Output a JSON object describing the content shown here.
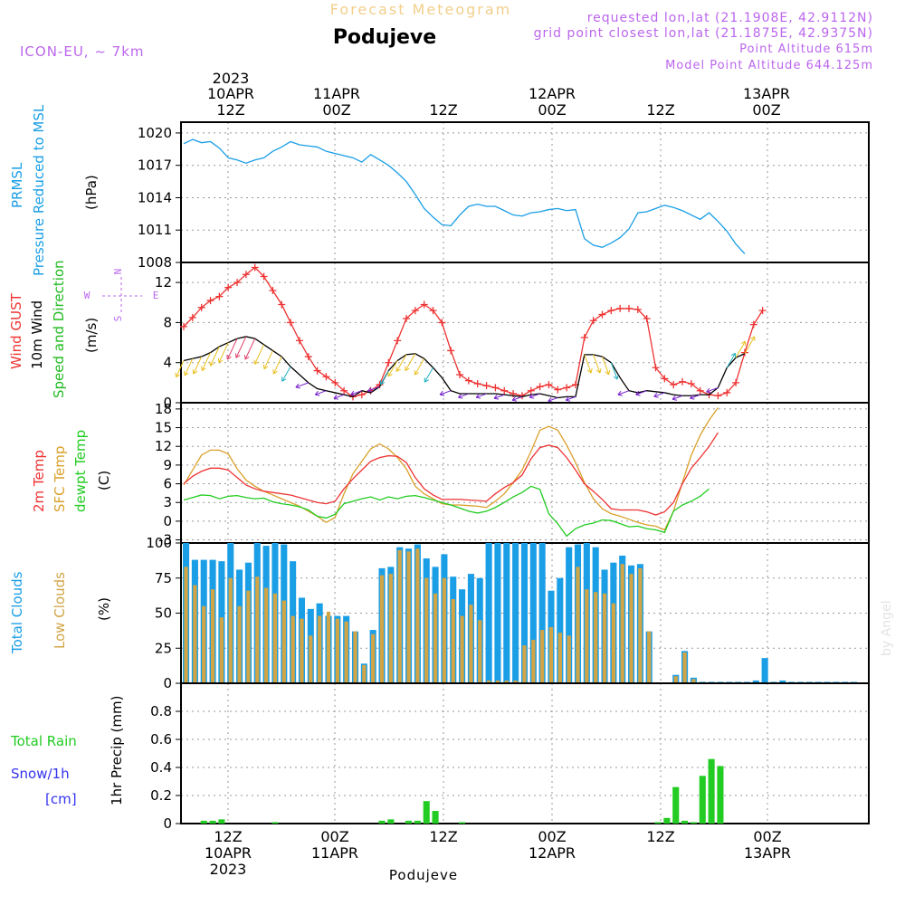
{
  "header": {
    "title": "Forecast Meteogram",
    "location": "Podujeve",
    "model": "ICON-EU, ~ 7km",
    "requested": "requested lon,lat (21.1908E, 42.9112N)",
    "gridpoint": "grid point closest lon,lat (21.1875E, 42.9375N)",
    "point_altitude": "Point Altitude 615m",
    "model_altitude": "Model Point Altitude 644.125m"
  },
  "footer": {
    "location": "Podujeve",
    "watermark": "by Angel"
  },
  "colors": {
    "pressure": "#1a9ee6",
    "gust": "#ee3333",
    "wind": "#000000",
    "dirlabel": "#22bb22",
    "temp2m": "#ee3333",
    "sfctemp": "#d9a02b",
    "dewpt": "#22cc22",
    "total_clouds": "#1a9ee6",
    "low_clouds": "#d1a546",
    "rain": "#22cc22",
    "snow": "#3333ee",
    "compass": "#bb66ee"
  },
  "time_axis": {
    "top": [
      {
        "line1": "2023",
        "line2": "10APR",
        "line3": "12Z"
      },
      {
        "line1": "",
        "line2": "11APR",
        "line3": "00Z"
      },
      {
        "line1": "",
        "line2": "",
        "line3": "12Z"
      },
      {
        "line1": "",
        "line2": "12APR",
        "line3": "00Z"
      },
      {
        "line1": "",
        "line2": "",
        "line3": "12Z"
      },
      {
        "line1": "",
        "line2": "13APR",
        "line3": "00Z"
      }
    ],
    "bottom": [
      {
        "line1": "12Z",
        "line2": "10APR",
        "line3": "2023"
      },
      {
        "line1": "00Z",
        "line2": "11APR",
        "line3": ""
      },
      {
        "line1": "12Z",
        "line2": "",
        "line3": ""
      },
      {
        "line1": "00Z",
        "line2": "12APR",
        "line3": ""
      },
      {
        "line1": "12Z",
        "line2": "",
        "line3": ""
      },
      {
        "line1": "00Z",
        "line2": "13APR",
        "line3": ""
      }
    ]
  },
  "panel_labels": {
    "pressure": {
      "name": "PRMSL",
      "desc": "Pressure Reduced to MSL",
      "unit": "(hPa)"
    },
    "wind": {
      "gust": "Wind GUST",
      "wind": "10m Wind",
      "dir": "Speed and Direction",
      "unit": "(m/s)",
      "compass_n": "N",
      "compass_s": "S",
      "compass_w": "W",
      "compass_e": "E"
    },
    "temp": {
      "t2m": "2m Temp",
      "sfc": "SFC Temp",
      "dew": "dewpt Temp",
      "unit": "(C)"
    },
    "clouds": {
      "total": "Total Clouds",
      "low": "Low Clouds",
      "unit": "(%)"
    },
    "precip": {
      "rain": "Total   Rain",
      "snow": "Snow/1h",
      "snow_unit": "[cm]",
      "title": "1hr Precip (mm)"
    }
  },
  "chart_data": [
    {
      "type": "line",
      "panel": "pressure",
      "x_hours_from": "10APR 06Z",
      "ylim": [
        1008,
        1021
      ],
      "yticks": [
        "1008",
        "1011",
        "1014",
        "1017",
        "1020"
      ],
      "series": [
        {
          "name": "PRMSL",
          "x": [
            0,
            1,
            2,
            3,
            4,
            5,
            6,
            7,
            8,
            9,
            10,
            11,
            12,
            13,
            14,
            15,
            16,
            17,
            18,
            19,
            20,
            21,
            22,
            23,
            24,
            25,
            26,
            27,
            28,
            29,
            30,
            31,
            32,
            33,
            34,
            35,
            36,
            37,
            38,
            39,
            40,
            41,
            42,
            43,
            44,
            45,
            46,
            47,
            48,
            49,
            50,
            51,
            52,
            53,
            54,
            55,
            56,
            57,
            58,
            59,
            60,
            61,
            62,
            63
          ],
          "values": [
            1019.0,
            1019.4,
            1019.1,
            1019.2,
            1018.6,
            1017.7,
            1017.5,
            1017.2,
            1017.5,
            1017.7,
            1018.3,
            1018.7,
            1019.2,
            1018.9,
            1018.8,
            1018.7,
            1018.3,
            1018.1,
            1017.9,
            1017.7,
            1017.3,
            1018.0,
            1017.5,
            1017.0,
            1016.3,
            1015.5,
            1014.3,
            1013.0,
            1012.2,
            1011.5,
            1011.4,
            1012.4,
            1013.2,
            1013.4,
            1013.2,
            1013.2,
            1012.8,
            1012.4,
            1012.3,
            1012.6,
            1012.7,
            1012.9,
            1013.0,
            1012.8,
            1012.9,
            1010.2,
            1009.6,
            1009.4,
            1009.8,
            1010.3,
            1011.1,
            1012.6,
            1012.7,
            1013.0,
            1013.3,
            1013.1,
            1012.8,
            1012.4,
            1012.0,
            1012.6,
            1011.8,
            1010.9,
            1009.7,
            1008.8
          ]
        }
      ]
    },
    {
      "type": "line",
      "panel": "wind",
      "ylim": [
        0,
        14
      ],
      "yticks": [
        "0",
        "4",
        "8",
        "12"
      ],
      "series": [
        {
          "name": "Wind GUST",
          "values": [
            7.6,
            8.5,
            9.5,
            10.2,
            10.6,
            11.5,
            12.0,
            12.8,
            13.5,
            12.6,
            11.2,
            9.8,
            8.0,
            6.2,
            4.6,
            3.2,
            2.6,
            2.0,
            1.2,
            0.6,
            0.8,
            1.2,
            1.8,
            4.0,
            6.2,
            8.4,
            9.2,
            9.8,
            9.2,
            8.0,
            5.2,
            2.8,
            2.2,
            1.9,
            1.7,
            1.5,
            1.2,
            0.9,
            0.7,
            1.2,
            1.6,
            1.8,
            1.3,
            1.5,
            1.8,
            6.5,
            8.2,
            8.8,
            9.2,
            9.4,
            9.4,
            9.3,
            8.4,
            3.5,
            2.4,
            1.8,
            2.1,
            1.9,
            1.2,
            0.8,
            0.7,
            1.0,
            2.0,
            5.0,
            7.8,
            9.2
          ]
        },
        {
          "name": "10m Wind",
          "values": [
            4.2,
            4.4,
            4.6,
            5.0,
            5.6,
            6.0,
            6.4,
            6.6,
            6.4,
            5.8,
            5.2,
            4.6,
            3.6,
            2.8,
            2.0,
            1.4,
            1.2,
            1.0,
            0.8,
            0.6,
            1.2,
            1.0,
            1.6,
            3.2,
            4.2,
            4.8,
            4.9,
            4.4,
            3.5,
            2.5,
            1.2,
            0.9,
            0.9,
            0.9,
            0.9,
            0.9,
            0.8,
            0.7,
            0.6,
            0.8,
            0.9,
            0.7,
            0.5,
            0.6,
            0.6,
            4.8,
            4.8,
            4.6,
            4.0,
            2.5,
            1.2,
            1.0,
            1.2,
            1.1,
            1.0,
            0.8,
            0.7,
            0.7,
            0.8,
            0.8,
            1.5,
            3.5,
            4.5,
            4.9
          ]
        }
      ]
    },
    {
      "type": "line",
      "panel": "temperature",
      "ylim": [
        -3.5,
        19
      ],
      "yticks": [
        "-3",
        "0",
        "3",
        "6",
        "9",
        "12",
        "15",
        "18"
      ],
      "series": [
        {
          "name": "2m Temp",
          "values": [
            6.0,
            7.2,
            8.0,
            8.5,
            8.5,
            8.2,
            7.0,
            5.8,
            5.2,
            4.8,
            4.6,
            4.4,
            4.2,
            3.8,
            3.4,
            3.0,
            2.8,
            3.2,
            5.2,
            6.8,
            8.2,
            9.6,
            10.2,
            10.5,
            10.4,
            9.4,
            7.0,
            5.2,
            4.2,
            3.5,
            3.5,
            3.5,
            3.4,
            3.3,
            3.2,
            4.4,
            5.4,
            6.2,
            7.4,
            10.0,
            11.8,
            12.2,
            11.8,
            10.2,
            8.2,
            6.0,
            4.8,
            3.5,
            2.0,
            1.8,
            1.8,
            1.8,
            1.5,
            1.0,
            1.5,
            3.0,
            6.0,
            8.5,
            10.2,
            12.0,
            14.2
          ]
        },
        {
          "name": "SFC Temp",
          "values": [
            5.8,
            8.2,
            10.6,
            11.4,
            11.4,
            10.8,
            8.4,
            6.6,
            5.6,
            4.8,
            4.2,
            3.6,
            3.0,
            2.4,
            1.6,
            0.8,
            -0.2,
            0.6,
            4.4,
            7.6,
            9.6,
            11.6,
            12.4,
            11.6,
            10.2,
            8.4,
            5.6,
            4.4,
            3.6,
            2.8,
            2.6,
            2.6,
            2.5,
            2.4,
            2.2,
            3.2,
            4.4,
            6.2,
            8.2,
            11.2,
            14.6,
            15.2,
            14.6,
            12.2,
            9.4,
            6.2,
            3.6,
            2.0,
            1.2,
            0.8,
            0.3,
            -0.2,
            -0.6,
            -0.8,
            -1.4,
            1.6,
            6.2,
            10.6,
            13.8,
            16.2,
            18.2
          ]
        },
        {
          "name": "dewpt Temp",
          "values": [
            3.4,
            3.8,
            4.2,
            4.1,
            3.6,
            4.0,
            4.1,
            3.8,
            3.6,
            3.7,
            3.1,
            2.8,
            2.6,
            2.3,
            1.8,
            0.8,
            0.5,
            1.1,
            2.8,
            3.2,
            3.6,
            3.9,
            3.4,
            3.9,
            3.6,
            4.0,
            4.1,
            3.8,
            3.4,
            3.0,
            2.6,
            2.1,
            1.6,
            1.3,
            1.6,
            2.2,
            3.0,
            3.9,
            4.6,
            5.6,
            5.1,
            1.2,
            -0.4,
            -2.4,
            -1.2,
            -0.6,
            -0.3,
            0.2,
            0.1,
            -0.4,
            -0.9,
            -0.8,
            -1.2,
            -1.4,
            -1.8,
            1.6,
            2.6,
            3.2,
            4.0,
            5.2
          ]
        }
      ]
    },
    {
      "type": "bar",
      "panel": "clouds",
      "ylim": [
        0,
        100
      ],
      "yticks": [
        "0",
        "25",
        "50",
        "75",
        "100"
      ],
      "series": [
        {
          "name": "Total Clouds",
          "values": [
            100,
            88,
            88,
            88,
            87,
            100,
            81,
            86,
            100,
            98,
            100,
            99,
            87,
            61,
            53,
            57,
            48,
            48,
            48,
            37,
            14,
            38,
            82,
            83,
            97,
            96,
            99,
            89,
            83,
            92,
            76,
            67,
            78,
            75,
            100,
            100,
            100,
            100,
            100,
            100,
            100,
            66,
            75,
            97,
            99,
            100,
            97,
            81,
            86,
            91,
            84,
            85,
            37,
            0,
            0,
            6,
            23,
            4,
            1,
            1,
            1,
            1,
            1,
            1,
            2,
            18,
            1,
            2,
            1,
            1,
            1,
            1,
            1,
            1,
            1,
            1
          ]
        },
        {
          "name": "Low Clouds",
          "values": [
            83,
            70,
            55,
            67,
            47,
            75,
            55,
            66,
            76,
            68,
            64,
            59,
            48,
            46,
            34,
            48,
            51,
            46,
            44,
            37,
            13,
            35,
            77,
            78,
            95,
            94,
            96,
            75,
            64,
            75,
            60,
            48,
            56,
            45,
            2,
            2,
            2,
            2,
            27,
            31,
            38,
            40,
            36,
            34,
            83,
            67,
            65,
            64,
            57,
            85,
            78,
            82,
            37,
            0,
            0,
            5,
            22,
            3,
            0,
            0,
            0,
            0,
            0,
            0,
            0,
            0,
            0,
            0,
            0,
            0,
            0,
            0,
            0,
            0,
            0,
            0
          ]
        }
      ]
    },
    {
      "type": "bar",
      "panel": "precipitation",
      "ylim": [
        0,
        1.0
      ],
      "yticks": [
        "0",
        "0.2",
        "0.4",
        "0.6",
        "0.8"
      ],
      "series": [
        {
          "name": "Total Rain",
          "values": [
            0,
            0,
            0.02,
            0.02,
            0.03,
            0,
            0,
            0,
            0,
            0,
            0.01,
            0,
            0,
            0,
            0,
            0,
            0,
            0,
            0,
            0,
            0,
            0,
            0.02,
            0.03,
            0,
            0.02,
            0.02,
            0.16,
            0.09,
            0,
            0,
            0.01,
            0,
            0,
            0,
            0,
            0,
            0,
            0,
            0,
            0,
            0,
            0,
            0,
            0,
            0,
            0,
            0,
            0,
            0,
            0,
            0,
            0,
            0.01,
            0.04,
            0.26,
            0.02,
            0.01,
            0.34,
            0.46,
            0.41,
            0,
            0,
            0,
            0,
            0,
            0,
            0,
            0,
            0,
            0,
            0,
            0,
            0,
            0,
            0
          ]
        },
        {
          "name": "Snow/1h",
          "values": []
        }
      ]
    }
  ]
}
